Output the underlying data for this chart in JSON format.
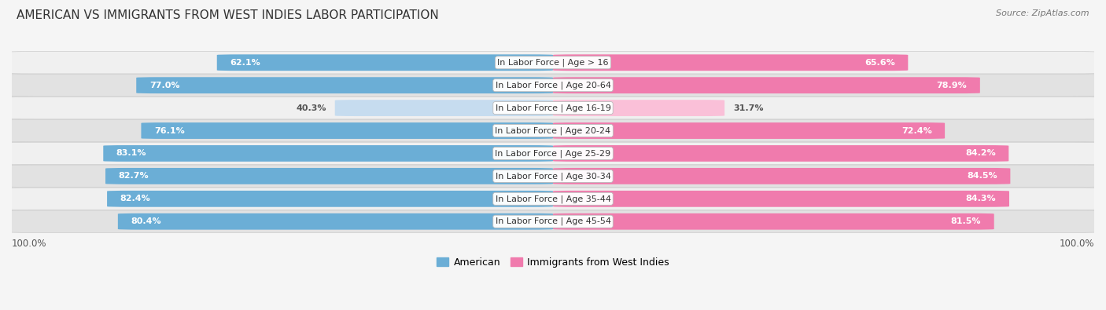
{
  "title": "AMERICAN VS IMMIGRANTS FROM WEST INDIES LABOR PARTICIPATION",
  "source": "Source: ZipAtlas.com",
  "categories": [
    "In Labor Force | Age > 16",
    "In Labor Force | Age 20-64",
    "In Labor Force | Age 16-19",
    "In Labor Force | Age 20-24",
    "In Labor Force | Age 25-29",
    "In Labor Force | Age 30-34",
    "In Labor Force | Age 35-44",
    "In Labor Force | Age 45-54"
  ],
  "american_values": [
    62.1,
    77.0,
    40.3,
    76.1,
    83.1,
    82.7,
    82.4,
    80.4
  ],
  "immigrant_values": [
    65.6,
    78.9,
    31.7,
    72.4,
    84.2,
    84.5,
    84.3,
    81.5
  ],
  "american_color": "#6BAED6",
  "immigrant_color": "#F07BAD",
  "american_light_color": "#C6DCEF",
  "immigrant_light_color": "#FAC0D8",
  "row_bg_light": "#f0f0f0",
  "row_bg_dark": "#e2e2e2",
  "background_color": "#f5f5f5",
  "max_value": 100.0,
  "legend_labels": [
    "American",
    "Immigrants from West Indies"
  ],
  "title_fontsize": 11,
  "source_fontsize": 8,
  "label_fontsize": 8.5,
  "category_fontsize": 8,
  "value_fontsize": 8
}
